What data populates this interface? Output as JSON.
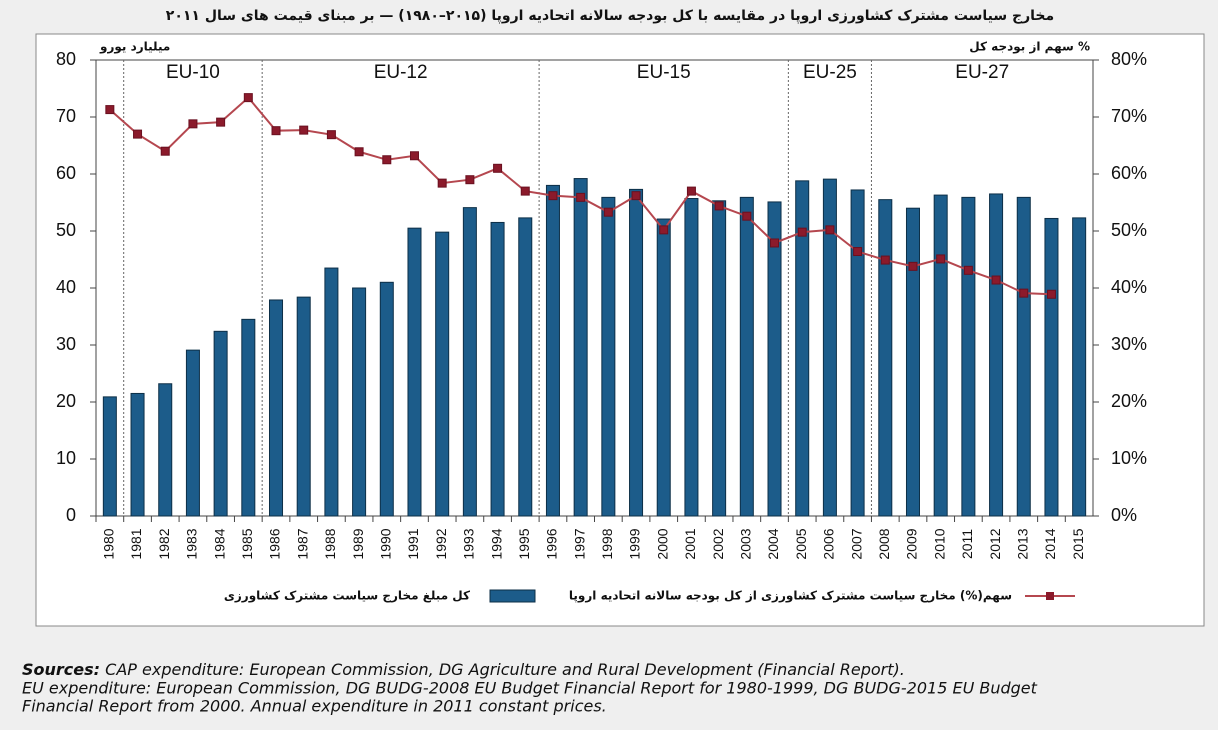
{
  "chart_data": {
    "type": "bar",
    "title": "مخارج سیاست مشترک کشاورزی اروپا در مقایسه با کل بودجه سالانه اتحادیه اروپا (۲۰۱۵–۱۹۸۰) — بر مبنای قیمت های سال ۲۰۱۱",
    "y_label": "میلیارد یورو",
    "y2_label": "% سهم از بودجه کل",
    "categories": [
      "1980",
      "1981",
      "1982",
      "1983",
      "1984",
      "1985",
      "1986",
      "1987",
      "1988",
      "1989",
      "1990",
      "1991",
      "1992",
      "1993",
      "1994",
      "1995",
      "1996",
      "1997",
      "1998",
      "1999",
      "2000",
      "2001",
      "2002",
      "2003",
      "2004",
      "2005",
      "2006",
      "2007",
      "2008",
      "2009",
      "2010",
      "2011",
      "2012",
      "2013",
      "2014",
      "2015"
    ],
    "series": [
      {
        "name": "کل مبلغ مخارج سیاست مشترک کشاورزی",
        "type": "bar",
        "axis": "y",
        "color": "#1c5c8a",
        "values": [
          20.9,
          21.5,
          23.2,
          29.1,
          32.4,
          34.5,
          37.9,
          38.4,
          43.5,
          40.0,
          41.0,
          50.5,
          49.8,
          54.1,
          51.5,
          52.3,
          58.0,
          59.2,
          55.9,
          57.3,
          52.1,
          55.7,
          55.3,
          55.9,
          55.1,
          58.8,
          59.1,
          57.2,
          55.5,
          54.0,
          56.3,
          55.9,
          56.5,
          55.9,
          52.2,
          52.3
        ]
      },
      {
        "name": "سهم(%) مخارج سیاست مشترک کشاورزی از کل بودجه سالانه اتحادیه اروپا",
        "type": "line",
        "axis": "y2",
        "color": "#b5474f",
        "values": [
          71.3,
          67.0,
          64.0,
          68.8,
          69.1,
          73.4,
          67.6,
          67.7,
          66.9,
          63.9,
          62.5,
          63.2,
          58.4,
          59.0,
          61.0,
          57.0,
          56.2,
          55.9,
          53.3,
          56.2,
          50.2,
          57.0,
          54.4,
          52.6,
          47.9,
          49.8,
          50.2,
          46.4,
          44.9,
          43.8,
          45.1,
          43.1,
          41.4,
          39.1,
          38.9,
          null
        ]
      }
    ],
    "regions": [
      {
        "label": "EU-10",
        "from": "1981"
      },
      {
        "label": "EU-12",
        "from": "1986"
      },
      {
        "label": "EU-15",
        "from": "1996"
      },
      {
        "label": "EU-25",
        "from": "2005"
      },
      {
        "label": "EU-27",
        "from": "2008"
      }
    ],
    "ylim": [
      0,
      80
    ],
    "yticks": [
      0,
      10,
      20,
      30,
      40,
      50,
      60,
      70,
      80
    ],
    "y2lim": [
      0,
      80
    ],
    "y2ticks": [
      {
        "value": 0,
        "label": "0%"
      },
      {
        "value": 10,
        "label": "10%"
      },
      {
        "value": 20,
        "label": "20%"
      },
      {
        "value": 30,
        "label": "30%"
      },
      {
        "value": 40,
        "label": "40%"
      },
      {
        "value": 50,
        "label": "50%"
      },
      {
        "value": 60,
        "label": "60%"
      },
      {
        "value": 70,
        "label": "70%"
      },
      {
        "value": 80,
        "label": "80%"
      }
    ],
    "grid": false,
    "legend": "bottom"
  },
  "footer": {
    "sources_label": "Sources:",
    "lines": [
      "CAP expenditure: European Commission, DG Agriculture and Rural Development (Financial Report).",
      "EU expenditure: European Commission, DG BUDG-2008 EU Budget Financial Report for 1980-1999, DG BUDG-2015 EU Budget",
      "Financial Report from 2000. Annual expenditure in 2011 constant prices."
    ]
  }
}
